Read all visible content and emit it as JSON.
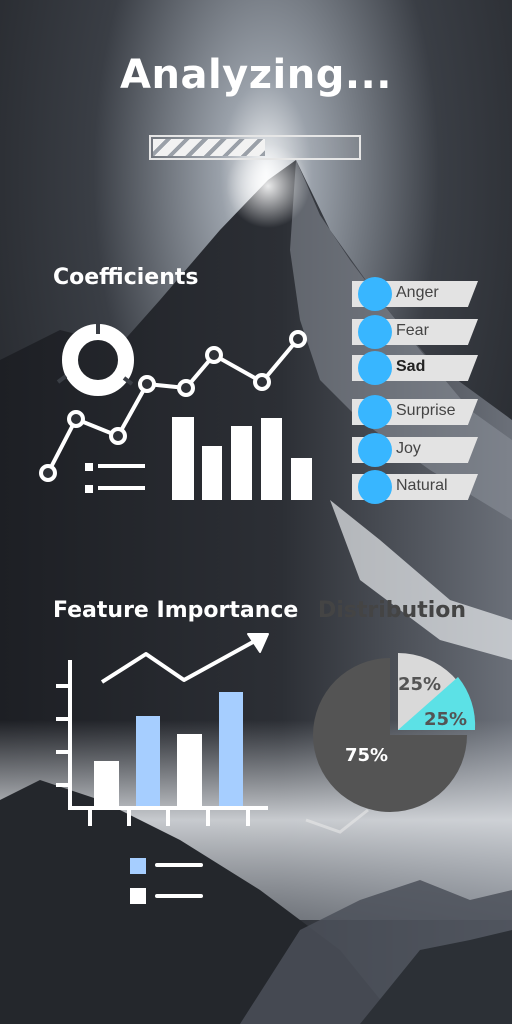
{
  "title": "Analyzing...",
  "progress": {
    "value": 0.55
  },
  "coefficients": {
    "title": "Coefficients"
  },
  "emotions": [
    {
      "label": "Anger",
      "bold": false
    },
    {
      "label": "Fear",
      "bold": false
    },
    {
      "label": "Sad",
      "bold": true
    },
    {
      "label": "Surprise",
      "bold": false
    },
    {
      "label": "Joy",
      "bold": false
    },
    {
      "label": "Natural",
      "bold": false
    }
  ],
  "feature_importance": {
    "title": "Feature Importance"
  },
  "distribution": {
    "title": "Distribution",
    "labels": {
      "top": "25%",
      "cyan": "25%",
      "main": "75%"
    }
  },
  "colors": {
    "accent_blue": "#38b6ff",
    "light_blue": "#a6ceff",
    "cyan": "#5ce1e6",
    "pie_dark": "#545454",
    "pie_light": "#d9d9d9"
  },
  "icons": [
    "donut-chart-icon",
    "line-chart-icon",
    "list-icon",
    "bar-chart-icon",
    "trend-arrow-icon",
    "legend-icon",
    "checkmark-icon"
  ]
}
